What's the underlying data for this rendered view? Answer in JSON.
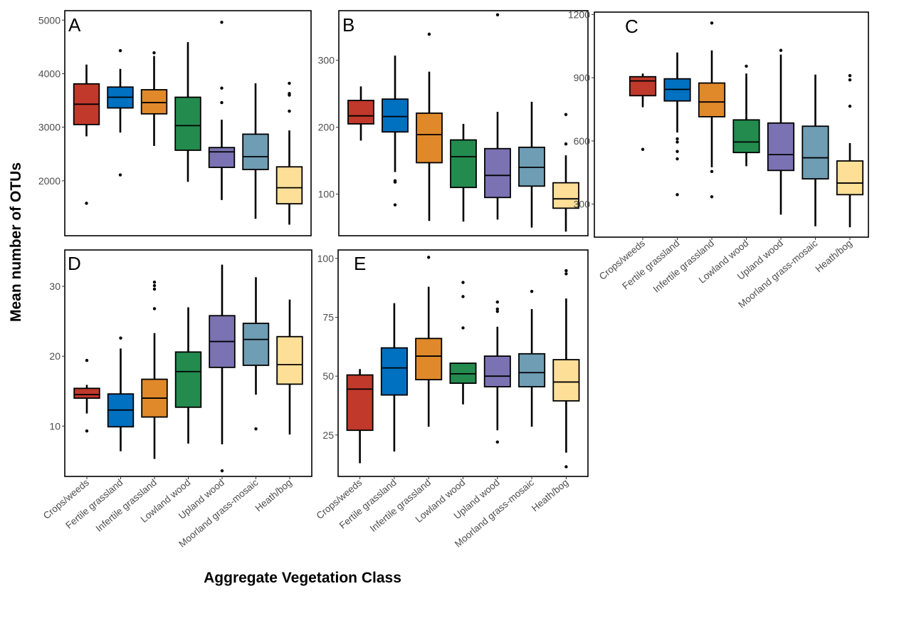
{
  "y_axis_title": "Mean number of OTUs",
  "x_axis_title": "Aggregate Vegetation Class",
  "chart_data": [
    {
      "type": "box",
      "panel": "A",
      "ylim": [
        1000,
        5150
      ],
      "yticks": [
        {
          "value": 2000,
          "label": "2000"
        },
        {
          "value": 3000,
          "label": "3000"
        },
        {
          "value": 4000,
          "label": "4000"
        },
        {
          "value": 5000,
          "label": "5000"
        }
      ],
      "categories": [
        "Crops/weeds",
        "Fertile grassland",
        "Infertile grassland",
        "Lowland wood",
        "Upland wood",
        "Moorland grass-mosaic",
        "Heath/bog"
      ],
      "boxes": [
        {
          "min": 2830,
          "q1": 3050,
          "median": 3430,
          "q3": 3810,
          "max": 4170,
          "outliers": [
            1580
          ]
        },
        {
          "min": 2900,
          "q1": 3360,
          "median": 3560,
          "q3": 3750,
          "max": 4090,
          "outliers": [
            2110,
            4430
          ]
        },
        {
          "min": 2650,
          "q1": 3250,
          "median": 3460,
          "q3": 3700,
          "max": 4330,
          "outliers": [
            4390
          ]
        },
        {
          "min": 1980,
          "q1": 2570,
          "median": 3030,
          "q3": 3560,
          "max": 4590,
          "outliers": []
        },
        {
          "min": 1640,
          "q1": 2250,
          "median": 2540,
          "q3": 2620,
          "max": 3140,
          "outliers": [
            3460,
            3730,
            4960
          ]
        },
        {
          "min": 1290,
          "q1": 2210,
          "median": 2450,
          "q3": 2870,
          "max": 3820,
          "outliers": []
        },
        {
          "min": 1180,
          "q1": 1570,
          "median": 1870,
          "q3": 2260,
          "max": 2940,
          "outliers": [
            3300,
            3600,
            3630,
            3820
          ]
        }
      ]
    },
    {
      "type": "box",
      "panel": "B",
      "ylim": [
        40,
        372
      ],
      "yticks": [
        {
          "value": 100,
          "label": "100"
        },
        {
          "value": 200,
          "label": "200"
        },
        {
          "value": 300,
          "label": "300"
        }
      ],
      "categories": [
        "Crops/weeds",
        "Fertile grassland",
        "Infertile grassland",
        "Lowland wood",
        "Upland wood",
        "Moorland grass-mosaic",
        "Heath/bog"
      ],
      "boxes": [
        {
          "min": 180,
          "q1": 205,
          "median": 217,
          "q3": 240,
          "max": 261,
          "outliers": []
        },
        {
          "min": 133,
          "q1": 193,
          "median": 216,
          "q3": 242,
          "max": 307,
          "outliers": [
            84,
            118,
            120
          ]
        },
        {
          "min": 60,
          "q1": 147,
          "median": 189,
          "q3": 221,
          "max": 283,
          "outliers": [
            339
          ]
        },
        {
          "min": 59,
          "q1": 110,
          "median": 156,
          "q3": 181,
          "max": 205,
          "outliers": []
        },
        {
          "min": 62,
          "q1": 95,
          "median": 128,
          "q3": 168,
          "max": 223,
          "outliers": [
            368
          ]
        },
        {
          "min": 50,
          "q1": 112,
          "median": 140,
          "q3": 170,
          "max": 238,
          "outliers": []
        },
        {
          "min": 44,
          "q1": 79,
          "median": 93,
          "q3": 117,
          "max": 158,
          "outliers": [
            175,
            219
          ]
        }
      ]
    },
    {
      "type": "box",
      "panel": "C",
      "ylim": [
        150,
        1205
      ],
      "yticks": [
        {
          "value": 300,
          "label": "300"
        },
        {
          "value": 600,
          "label": "600"
        },
        {
          "value": 900,
          "label": "900"
        },
        {
          "value": 1200,
          "label": "1200"
        }
      ],
      "categories": [
        "Crops/weeds",
        "Fertile grassland",
        "Infertile grassland",
        "Lowland wood",
        "Upland wood",
        "Moorland grass-mosaic",
        "Heath/bog"
      ],
      "boxes": [
        {
          "min": 760,
          "q1": 815,
          "median": 885,
          "q3": 905,
          "max": 920,
          "outliers": [
            560
          ]
        },
        {
          "min": 640,
          "q1": 790,
          "median": 845,
          "q3": 895,
          "max": 1020,
          "outliers": [
            345,
            515,
            550,
            595,
            610
          ]
        },
        {
          "min": 475,
          "q1": 715,
          "median": 785,
          "q3": 875,
          "max": 1030,
          "outliers": [
            335,
            455,
            1160
          ]
        },
        {
          "min": 480,
          "q1": 545,
          "median": 595,
          "q3": 700,
          "max": 920,
          "outliers": [
            955
          ]
        },
        {
          "min": 250,
          "q1": 460,
          "median": 535,
          "q3": 685,
          "max": 1010,
          "outliers": [
            1030
          ]
        },
        {
          "min": 195,
          "q1": 420,
          "median": 520,
          "q3": 670,
          "max": 915,
          "outliers": []
        },
        {
          "min": 190,
          "q1": 345,
          "median": 400,
          "q3": 505,
          "max": 590,
          "outliers": [
            765,
            890,
            910
          ]
        }
      ]
    },
    {
      "type": "box",
      "panel": "D",
      "ylim": [
        3,
        35
      ],
      "yticks": [
        {
          "value": 10,
          "label": "10"
        },
        {
          "value": 20,
          "label": "20"
        },
        {
          "value": 30,
          "label": "30"
        }
      ],
      "categories": [
        "Crops/weeds",
        "Fertile grassland",
        "Infertile grassland",
        "Lowland wood",
        "Upland wood",
        "Moorland grass-mosaic",
        "Heath/bog"
      ],
      "xtick_labels": [
        "Crops/weeds",
        "Fertile grassland",
        "Infertile grassland",
        "Lowland wood",
        "Upland wood",
        "Moorland grass-mosaic",
        "Heath/bog"
      ],
      "boxes": [
        {
          "min": 11.8,
          "q1": 14.0,
          "median": 14.5,
          "q3": 15.4,
          "max": 15.9,
          "outliers": [
            9.3,
            19.4
          ]
        },
        {
          "min": 6.4,
          "q1": 9.9,
          "median": 12.3,
          "q3": 14.6,
          "max": 21.1,
          "outliers": [
            22.6
          ]
        },
        {
          "min": 5.3,
          "q1": 11.3,
          "median": 14.0,
          "q3": 16.7,
          "max": 23.3,
          "outliers": [
            26.8,
            29.6,
            30.1,
            30.6
          ]
        },
        {
          "min": 7.5,
          "q1": 12.7,
          "median": 17.8,
          "q3": 20.6,
          "max": 27.0,
          "outliers": []
        },
        {
          "min": 7.4,
          "q1": 18.4,
          "median": 22.1,
          "q3": 25.8,
          "max": 33.1,
          "outliers": [
            3.6
          ]
        },
        {
          "min": 14.5,
          "q1": 18.7,
          "median": 22.4,
          "q3": 24.7,
          "max": 31.3,
          "outliers": [
            9.6
          ]
        },
        {
          "min": 8.8,
          "q1": 16.0,
          "median": 18.8,
          "q3": 22.8,
          "max": 28.1,
          "outliers": []
        }
      ]
    },
    {
      "type": "box",
      "panel": "E",
      "ylim": [
        8,
        103
      ],
      "yticks": [
        {
          "value": 25,
          "label": "25"
        },
        {
          "value": 50,
          "label": "50"
        },
        {
          "value": 75,
          "label": "75"
        },
        {
          "value": 100,
          "label": "100"
        }
      ],
      "categories": [
        "Crops/weeds",
        "Fertile grassland",
        "Infertile grassland",
        "Lowland wood",
        "Upland wood",
        "Moorland grass-mosaic",
        "Heath/bog"
      ],
      "xtick_labels": [
        "Crops/weeds",
        "Fertile grassland",
        "Infertile grassland",
        "Lowland wood",
        "Upland wood",
        "Moorland grass-mosaic",
        "Heath/bog"
      ],
      "boxes": [
        {
          "min": 13,
          "q1": 27,
          "median": 44.5,
          "q3": 50.5,
          "max": 53,
          "outliers": []
        },
        {
          "min": 18,
          "q1": 42,
          "median": 53.5,
          "q3": 62,
          "max": 81,
          "outliers": []
        },
        {
          "min": 28.5,
          "q1": 48.5,
          "median": 58.5,
          "q3": 66,
          "max": 88,
          "outliers": [
            100.5
          ]
        },
        {
          "min": 38,
          "q1": 47,
          "median": 51,
          "q3": 55.5,
          "max": 55.5,
          "outliers": [
            70.5,
            83.8,
            89.8
          ]
        },
        {
          "min": 27,
          "q1": 45.5,
          "median": 50,
          "q3": 58.5,
          "max": 71,
          "outliers": [
            22,
            77.5,
            78.5,
            81.5
          ]
        },
        {
          "min": 28.5,
          "q1": 45.5,
          "median": 51.5,
          "q3": 59.5,
          "max": 78.5,
          "outliers": [
            86
          ]
        },
        {
          "min": 17.5,
          "q1": 39.5,
          "median": 47.5,
          "q3": 57,
          "max": 83,
          "outliers": [
            11.5,
            93.5,
            94.8
          ]
        }
      ]
    }
  ],
  "colors": [
    "#c0392b",
    "#0070c0",
    "#e0892b",
    "#238b4e",
    "#7b72b3",
    "#6e9db4",
    "#fddf98"
  ]
}
